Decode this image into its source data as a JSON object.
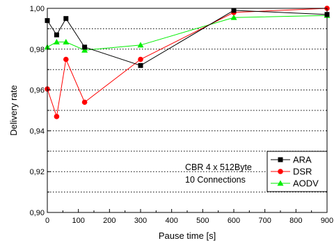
{
  "chart_data": {
    "type": "line",
    "xlabel": "Pause time [s]",
    "ylabel": "Delivery rate",
    "xlim": [
      0,
      900
    ],
    "ylim": [
      0.9,
      1.0
    ],
    "xticks": [
      0,
      100,
      200,
      300,
      400,
      500,
      600,
      700,
      800,
      900
    ],
    "yticks": [
      0.9,
      0.92,
      0.94,
      0.96,
      0.98,
      1.0
    ],
    "x_tick_labels": [
      "0",
      "100",
      "200",
      "300",
      "400",
      "500",
      "600",
      "700",
      "800",
      "900"
    ],
    "y_tick_labels": [
      "0,90",
      "0,92",
      "0,94",
      "0,96",
      "0,98",
      "1,00"
    ],
    "grid_y": [
      0.91,
      0.92,
      0.93,
      0.94,
      0.95,
      0.96,
      0.97,
      0.98,
      0.99,
      1.0
    ],
    "grid": "horizontal dotted",
    "annotation": [
      "CBR 4 x 512Byte",
      "10 Connections"
    ],
    "legend_position": "bottom-right",
    "series": [
      {
        "name": "ARA",
        "color": "#000000",
        "marker": "square",
        "x": [
          0,
          30,
          60,
          120,
          300,
          600,
          900
        ],
        "y": [
          0.994,
          0.987,
          0.995,
          0.981,
          0.972,
          0.999,
          0.997
        ]
      },
      {
        "name": "DSR",
        "color": "#ff0000",
        "marker": "circle",
        "x": [
          0,
          30,
          60,
          120,
          300,
          600,
          900
        ],
        "y": [
          0.9605,
          0.947,
          0.975,
          0.954,
          0.975,
          0.998,
          1.0
        ]
      },
      {
        "name": "AODV",
        "color": "#00ee00",
        "marker": "triangle",
        "x": [
          0,
          30,
          60,
          120,
          300,
          600,
          900
        ],
        "y": [
          0.981,
          0.9835,
          0.9835,
          0.9795,
          0.982,
          0.9955,
          0.9965
        ]
      }
    ]
  }
}
